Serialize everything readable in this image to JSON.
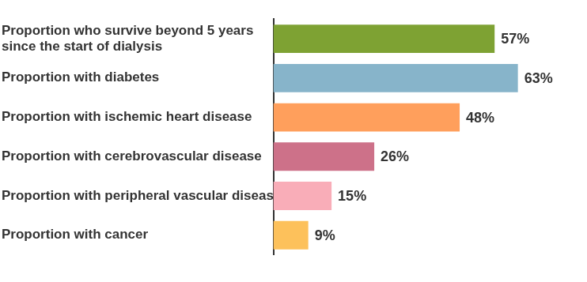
{
  "chart_data": {
    "type": "bar",
    "orientation": "horizontal",
    "categories": [
      "Proportion who survive beyond 5 years since the start of dialysis",
      "Proportion with diabetes",
      "Proportion with ischemic heart disease",
      "Proportion with cerebrovascular disease",
      "Proportion with peripheral vascular disease",
      "Proportion with cancer"
    ],
    "values": [
      57,
      63,
      48,
      26,
      15,
      9
    ],
    "value_labels": [
      "57%",
      "63%",
      "48%",
      "26%",
      "15%",
      "9%"
    ],
    "colors": [
      "#7ea233",
      "#87b4ca",
      "#ff9f5c",
      "#cd7189",
      "#f9adb8",
      "#fdc15b"
    ],
    "data_labels": true,
    "tick_labels": "y",
    "grid": false
  }
}
